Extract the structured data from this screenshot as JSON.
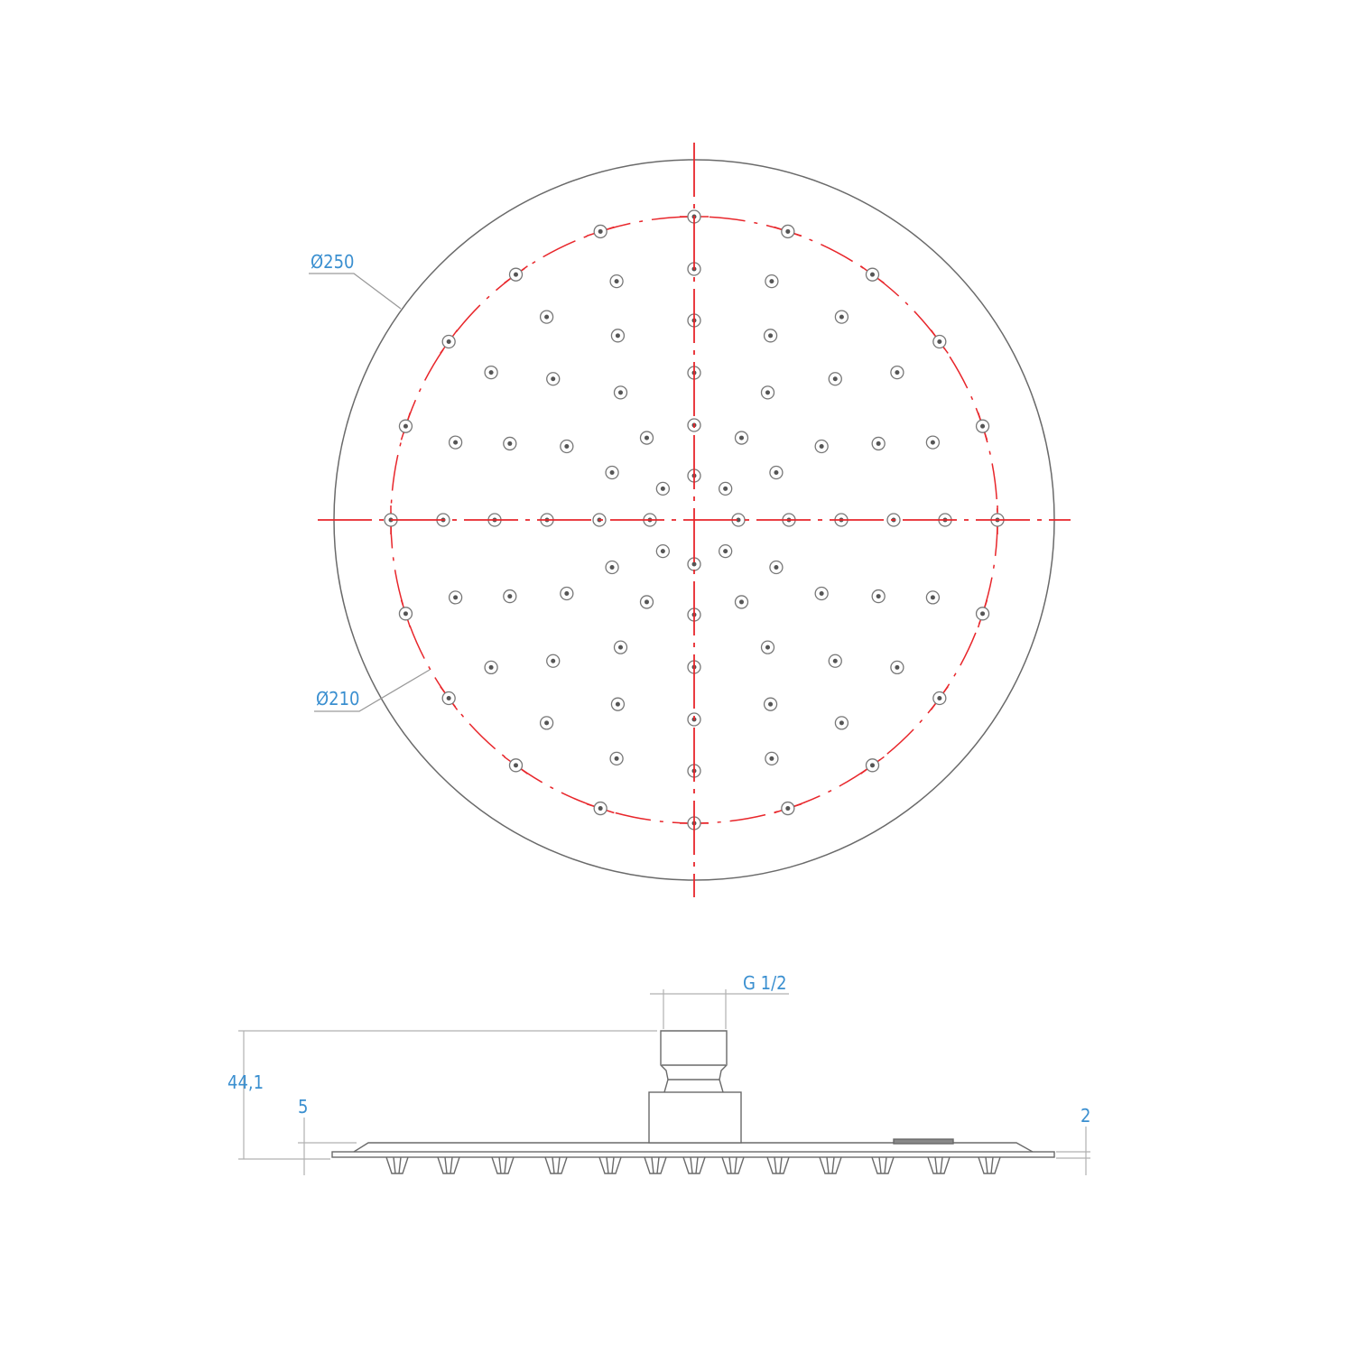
{
  "labels": {
    "outer_diameter": "Ø250",
    "spray_diameter": "Ø210",
    "thread": "G 1/2",
    "total_height": "44,1",
    "plate_height": "5",
    "edge_thickness": "2"
  },
  "colors": {
    "outline": "#6a6a6a",
    "centerline": "#e8262b",
    "dimension_text": "#3a8fd0",
    "leader": "#9a9a9a"
  }
}
